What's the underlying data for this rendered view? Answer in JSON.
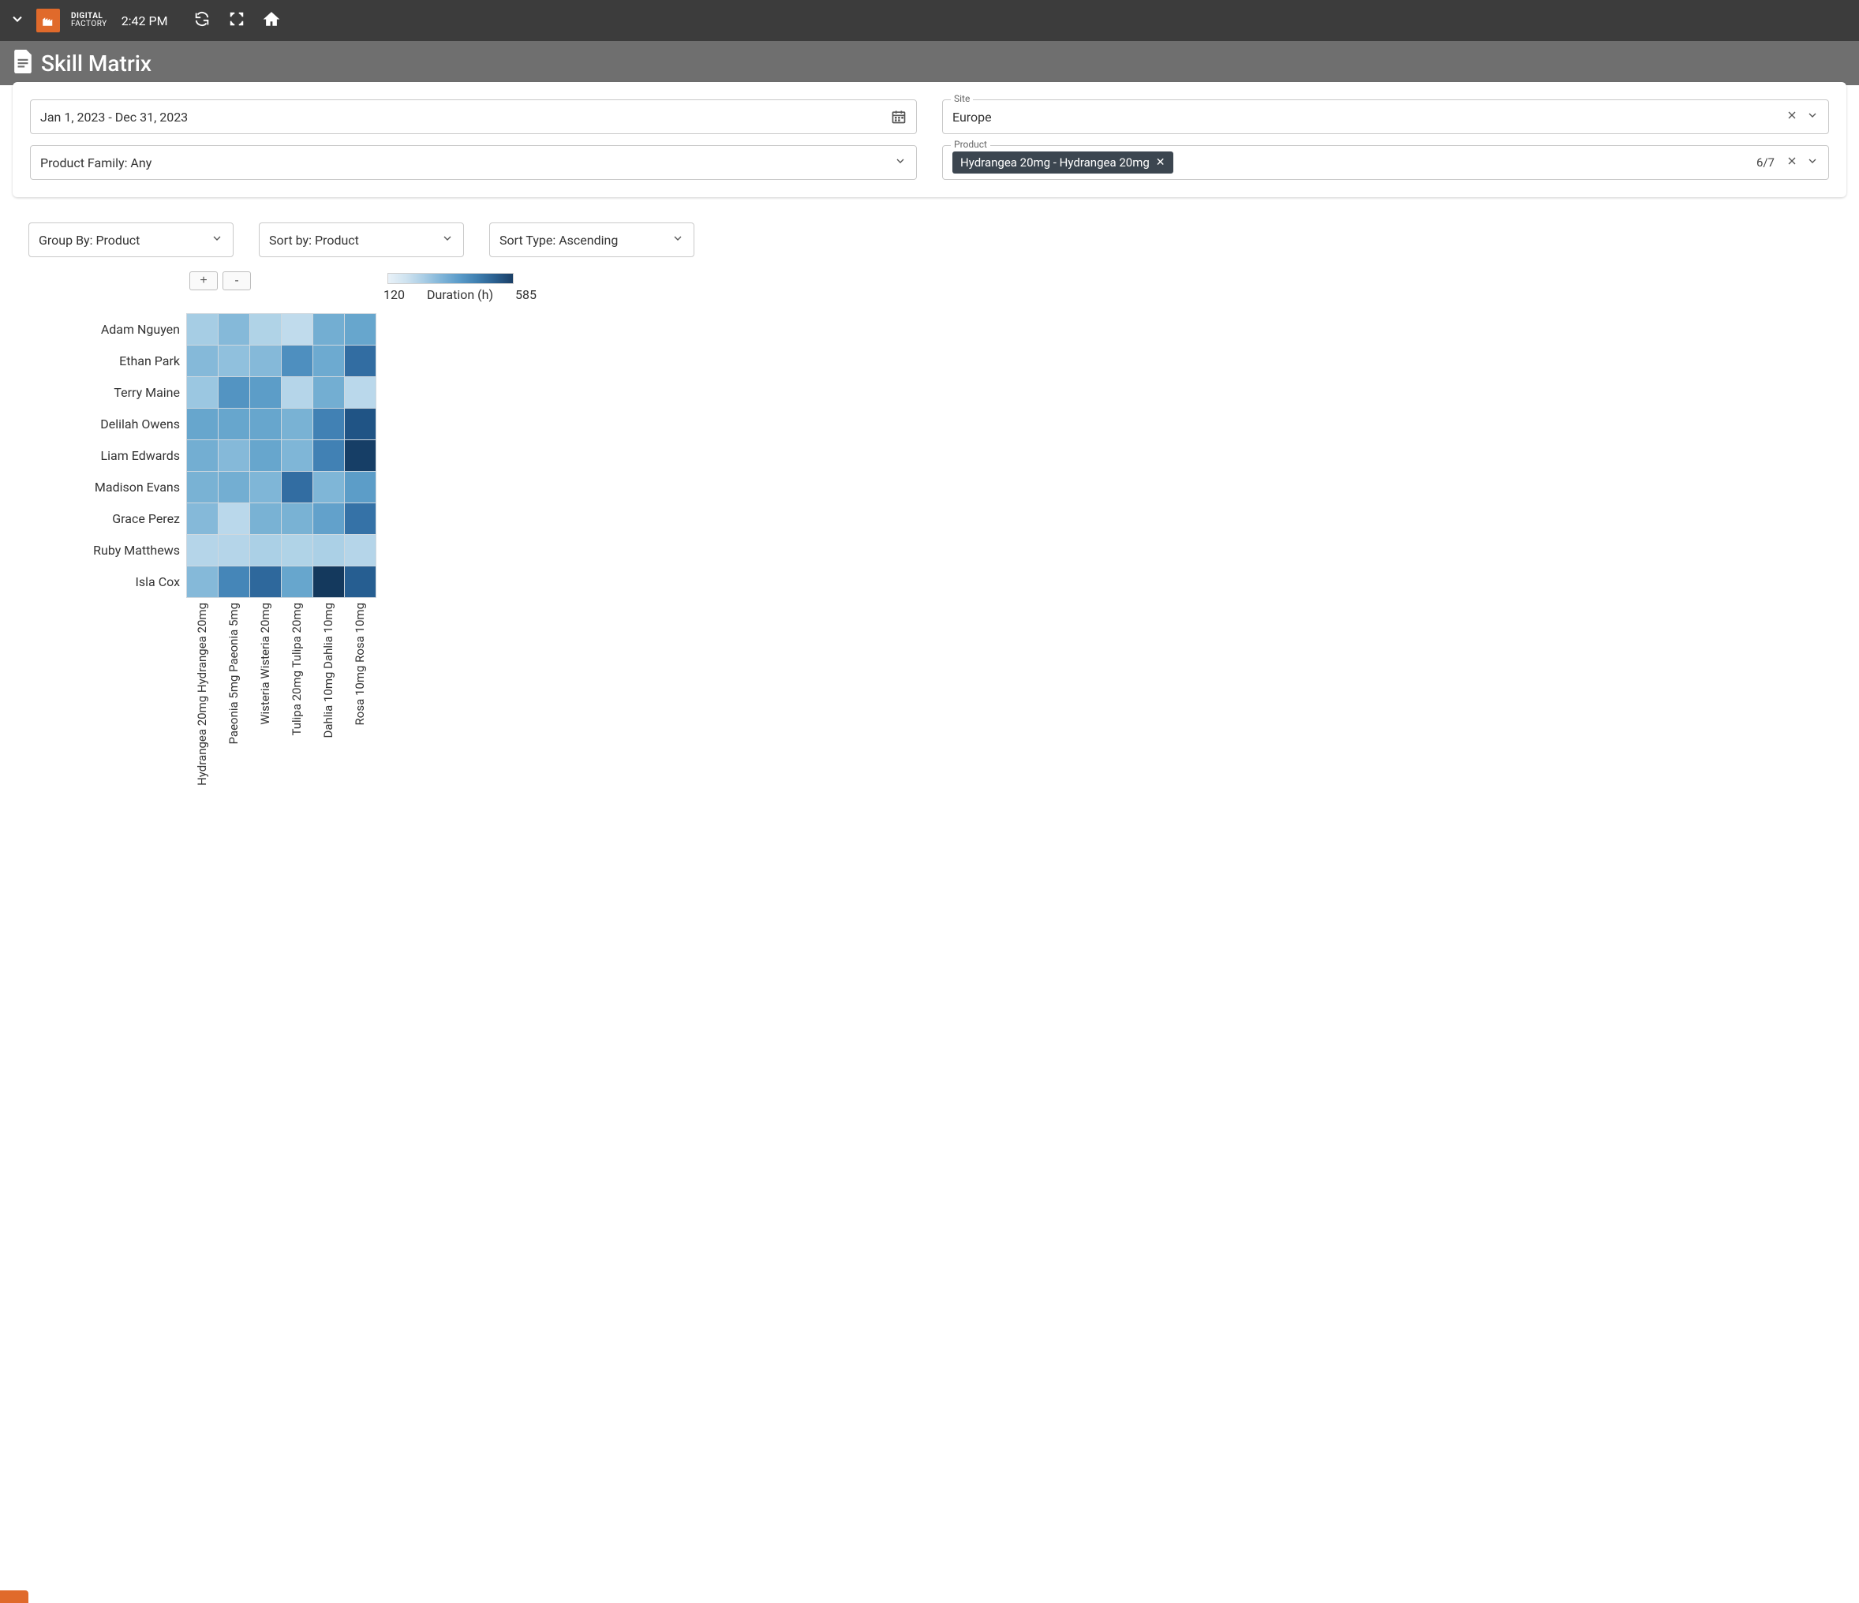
{
  "topbar": {
    "brand_line1": "DIGITAL",
    "brand_line2": "FACTORY",
    "time": "2:42 PM"
  },
  "page": {
    "title": "Skill Matrix"
  },
  "filters": {
    "date_range": "Jan 1, 2023 - Dec 31, 2023",
    "site_label": "Site",
    "site_value": "Europe",
    "product_family": "Product Family: Any",
    "product_label": "Product",
    "product_chip": "Hydrangea 20mg - Hydrangea 20mg",
    "product_count": "6/7"
  },
  "controls": {
    "group_by": "Group By: Product",
    "sort_by": "Sort by: Product",
    "sort_type": "Sort Type: Ascending"
  },
  "heatmap": {
    "type": "heatmap",
    "cell_size": 40,
    "border_color": "#cfd8df",
    "legend": {
      "min": "120",
      "label": "Duration (h)",
      "max": "585"
    },
    "color_stops": [
      "#e8f1f8",
      "#cfe3f0",
      "#b8d7ea",
      "#a2cbe3",
      "#8bbddb",
      "#72aed2",
      "#5a9bc7",
      "#4788ba",
      "#3673a8",
      "#265e91",
      "#1a4876",
      "#10304f"
    ],
    "zoom_plus": "+",
    "zoom_minus": "-",
    "y_labels": [
      "Adam Nguyen",
      "Ethan Park",
      "Terry Maine",
      "Delilah Owens",
      "Liam Edwards",
      "Madison Evans",
      "Grace Perez",
      "Ruby Matthews",
      "Isla Cox"
    ],
    "x_labels": [
      "Hydrangea 20mg Hydrangea 20mg",
      "Paeonia 5mg Paeonia 5mg",
      "Wisteria Wisteria 20mg",
      "Tulipa 20mg Tulipa 20mg",
      "Dahlia 10mg Dahlia 10mg",
      "Rosa 10mg Rosa 10mg"
    ],
    "values": [
      [
        240,
        300,
        220,
        190,
        330,
        350
      ],
      [
        300,
        280,
        300,
        400,
        340,
        470
      ],
      [
        260,
        390,
        370,
        210,
        330,
        200
      ],
      [
        350,
        350,
        350,
        320,
        430,
        520
      ],
      [
        330,
        300,
        350,
        310,
        430,
        560
      ],
      [
        320,
        330,
        310,
        470,
        310,
        370
      ],
      [
        300,
        200,
        320,
        320,
        360,
        460
      ],
      [
        210,
        210,
        230,
        220,
        230,
        210
      ],
      [
        300,
        420,
        480,
        350,
        570,
        500
      ]
    ],
    "value_min": 120,
    "value_max": 585
  }
}
